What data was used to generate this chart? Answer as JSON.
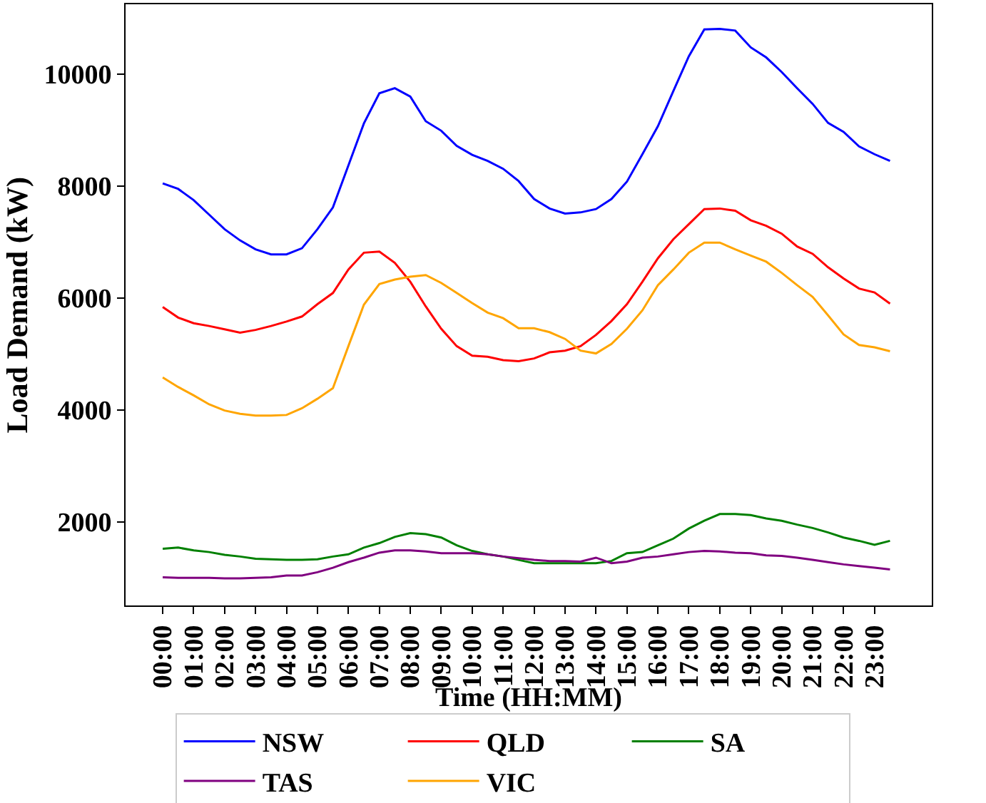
{
  "chart_data": {
    "type": "line",
    "xlabel": "Time (HH:MM)",
    "ylabel": "Load Demand (kW)",
    "x": [
      0,
      0.5,
      1,
      1.5,
      2,
      2.5,
      3,
      3.5,
      4,
      4.5,
      5,
      5.5,
      6,
      6.5,
      7,
      7.5,
      8,
      8.5,
      9,
      9.5,
      10,
      10.5,
      11,
      11.5,
      12,
      12.5,
      13,
      13.5,
      14,
      14.5,
      15,
      15.5,
      16,
      16.5,
      17,
      17.5,
      18,
      18.5,
      19,
      19.5,
      20,
      20.5,
      21,
      21.5,
      22,
      22.5,
      23,
      23.5
    ],
    "xlim": [
      -1.2,
      24.85
    ],
    "ylim": [
      500,
      11250
    ],
    "xticks": [
      {
        "value": 0,
        "label": "00:00"
      },
      {
        "value": 1,
        "label": "01:00"
      },
      {
        "value": 2,
        "label": "02:00"
      },
      {
        "value": 3,
        "label": "03:00"
      },
      {
        "value": 4,
        "label": "04:00"
      },
      {
        "value": 5,
        "label": "05:00"
      },
      {
        "value": 6,
        "label": "06:00"
      },
      {
        "value": 7,
        "label": "07:00"
      },
      {
        "value": 8,
        "label": "08:00"
      },
      {
        "value": 9,
        "label": "09:00"
      },
      {
        "value": 10,
        "label": "10:00"
      },
      {
        "value": 11,
        "label": "11:00"
      },
      {
        "value": 12,
        "label": "12:00"
      },
      {
        "value": 13,
        "label": "13:00"
      },
      {
        "value": 14,
        "label": "14:00"
      },
      {
        "value": 15,
        "label": "15:00"
      },
      {
        "value": 16,
        "label": "16:00"
      },
      {
        "value": 17,
        "label": "17:00"
      },
      {
        "value": 18,
        "label": "18:00"
      },
      {
        "value": 19,
        "label": "19:00"
      },
      {
        "value": 20,
        "label": "20:00"
      },
      {
        "value": 21,
        "label": "21:00"
      },
      {
        "value": 22,
        "label": "22:00"
      },
      {
        "value": 23,
        "label": "23:00"
      }
    ],
    "yticks": [
      2000,
      4000,
      6000,
      8000,
      10000
    ],
    "legend": "bottom",
    "marker": "none",
    "line_style": "solid",
    "series": [
      {
        "name": "NSW",
        "color": "#0000ff",
        "values": [
          8050,
          7950,
          7750,
          7490,
          7230,
          7030,
          6870,
          6780,
          6780,
          6890,
          7230,
          7620,
          8370,
          9120,
          9660,
          9750,
          9600,
          9160,
          8990,
          8720,
          8560,
          8450,
          8310,
          8090,
          7770,
          7600,
          7510,
          7530,
          7590,
          7770,
          8080,
          8570,
          9070,
          9700,
          10320,
          10800,
          10810,
          10780,
          10480,
          10300,
          10040,
          9750,
          9470,
          9130,
          8970,
          8710,
          8570,
          8450
        ]
      },
      {
        "name": "QLD",
        "color": "#ff0000",
        "values": [
          5840,
          5650,
          5550,
          5500,
          5440,
          5380,
          5430,
          5500,
          5580,
          5670,
          5890,
          6090,
          6510,
          6810,
          6830,
          6630,
          6290,
          5850,
          5450,
          5140,
          4970,
          4950,
          4890,
          4870,
          4920,
          5030,
          5060,
          5140,
          5340,
          5590,
          5890,
          6290,
          6710,
          7050,
          7320,
          7590,
          7600,
          7560,
          7390,
          7290,
          7150,
          6920,
          6790,
          6550,
          6350,
          6170,
          6100,
          5900
        ]
      },
      {
        "name": "SA",
        "color": "#008000",
        "values": [
          1520,
          1540,
          1490,
          1460,
          1410,
          1380,
          1340,
          1330,
          1320,
          1320,
          1330,
          1380,
          1420,
          1540,
          1620,
          1730,
          1800,
          1780,
          1720,
          1580,
          1480,
          1420,
          1380,
          1320,
          1260,
          1260,
          1260,
          1260,
          1260,
          1300,
          1440,
          1460,
          1580,
          1700,
          1880,
          2020,
          2140,
          2140,
          2120,
          2060,
          2020,
          1950,
          1890,
          1810,
          1720,
          1660,
          1590,
          1660
        ]
      },
      {
        "name": "TAS",
        "color": "#800080",
        "values": [
          1010,
          1000,
          1000,
          1000,
          990,
          990,
          1000,
          1010,
          1040,
          1040,
          1100,
          1180,
          1280,
          1360,
          1450,
          1490,
          1490,
          1470,
          1440,
          1440,
          1440,
          1420,
          1380,
          1350,
          1320,
          1300,
          1300,
          1290,
          1360,
          1260,
          1290,
          1360,
          1380,
          1420,
          1460,
          1480,
          1470,
          1450,
          1440,
          1400,
          1390,
          1360,
          1320,
          1280,
          1240,
          1210,
          1180,
          1150
        ]
      },
      {
        "name": "VIC",
        "color": "#ffa500",
        "values": [
          4580,
          4410,
          4260,
          4100,
          3990,
          3930,
          3900,
          3900,
          3910,
          4030,
          4200,
          4390,
          5140,
          5880,
          6250,
          6330,
          6380,
          6410,
          6270,
          6090,
          5910,
          5740,
          5640,
          5460,
          5460,
          5390,
          5270,
          5060,
          5010,
          5180,
          5450,
          5780,
          6230,
          6510,
          6810,
          6990,
          6990,
          6870,
          6760,
          6650,
          6450,
          6230,
          6020,
          5690,
          5350,
          5160,
          5120,
          5050
        ]
      }
    ]
  }
}
